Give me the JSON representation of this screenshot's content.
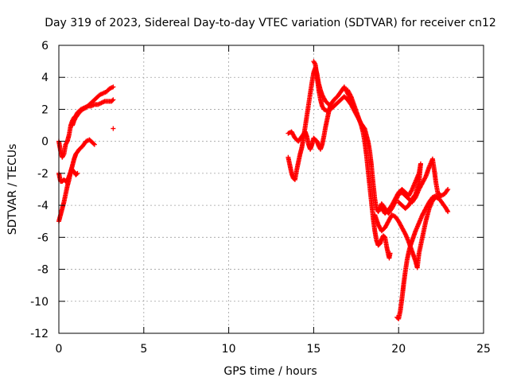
{
  "chart_data": {
    "type": "scatter",
    "title": "Day 319 of 2023, Sidereal Day-to-day VTEC variation (SDTVAR) for receiver cn12",
    "xlabel": "GPS time / hours",
    "ylabel": "SDTVAR / TECUs",
    "xlim": [
      0,
      25
    ],
    "ylim": [
      -12,
      6
    ],
    "xticks": [
      0,
      5,
      10,
      15,
      20,
      25
    ],
    "yticks": [
      -12,
      -10,
      -8,
      -6,
      -4,
      -2,
      0,
      2,
      4,
      6
    ],
    "grid": true,
    "marker": "+",
    "color": "#ff0000",
    "series": [
      {
        "values": [
          [
            0.0,
            -5.0
          ],
          [
            0.1,
            -4.6
          ],
          [
            0.2,
            -4.2
          ],
          [
            0.3,
            -3.8
          ],
          [
            0.4,
            -3.3
          ],
          [
            0.5,
            -2.8
          ],
          [
            0.6,
            -2.4
          ],
          [
            0.7,
            -1.9
          ],
          [
            0.8,
            -1.5
          ],
          [
            0.9,
            -1.1
          ],
          [
            1.0,
            -0.8
          ],
          [
            1.2,
            -0.5
          ],
          [
            1.4,
            -0.3
          ],
          [
            1.6,
            0.0
          ],
          [
            1.8,
            0.1
          ],
          [
            2.0,
            -0.1
          ],
          [
            2.1,
            -0.2
          ]
        ]
      },
      {
        "values": [
          [
            0.0,
            -2.0
          ],
          [
            0.1,
            -2.5
          ],
          [
            0.2,
            -2.5
          ],
          [
            0.3,
            -2.4
          ],
          [
            0.4,
            -2.5
          ],
          [
            0.5,
            -2.4
          ],
          [
            0.6,
            -2.2
          ],
          [
            0.7,
            -1.9
          ],
          [
            0.75,
            -1.7
          ],
          [
            0.8,
            -1.8
          ],
          [
            0.9,
            -1.9
          ],
          [
            1.0,
            -2.1
          ],
          [
            1.1,
            -2.0
          ]
        ]
      },
      {
        "values": [
          [
            0.0,
            0.0
          ],
          [
            0.1,
            -0.6
          ],
          [
            0.2,
            -1.0
          ],
          [
            0.3,
            -0.8
          ],
          [
            0.4,
            -0.2
          ],
          [
            0.5,
            0.0
          ],
          [
            0.6,
            0.4
          ],
          [
            0.7,
            1.0
          ],
          [
            0.8,
            1.3
          ],
          [
            0.9,
            1.5
          ],
          [
            1.0,
            1.6
          ],
          [
            1.1,
            1.8
          ],
          [
            1.2,
            1.9
          ],
          [
            1.3,
            2.0
          ],
          [
            1.5,
            2.1
          ],
          [
            1.7,
            2.2
          ],
          [
            1.9,
            2.2
          ],
          [
            2.1,
            2.3
          ],
          [
            2.3,
            2.3
          ],
          [
            2.5,
            2.4
          ],
          [
            2.7,
            2.5
          ],
          [
            2.9,
            2.5
          ],
          [
            3.1,
            2.5
          ],
          [
            3.2,
            2.6
          ]
        ]
      },
      {
        "values": [
          [
            0.8,
            1.0
          ],
          [
            0.9,
            1.3
          ],
          [
            1.0,
            1.5
          ],
          [
            1.2,
            1.8
          ],
          [
            1.4,
            2.0
          ],
          [
            1.6,
            2.1
          ],
          [
            1.8,
            2.3
          ],
          [
            2.0,
            2.5
          ],
          [
            2.2,
            2.7
          ],
          [
            2.4,
            2.9
          ],
          [
            2.6,
            3.0
          ],
          [
            2.8,
            3.1
          ],
          [
            3.0,
            3.3
          ],
          [
            3.2,
            3.4
          ]
        ]
      },
      {
        "values": [
          [
            3.2,
            0.8
          ]
        ]
      },
      {
        "values": [
          [
            13.5,
            -1.0
          ],
          [
            13.6,
            -1.5
          ],
          [
            13.7,
            -2.0
          ],
          [
            13.8,
            -2.3
          ],
          [
            13.9,
            -2.4
          ],
          [
            14.0,
            -1.8
          ],
          [
            14.1,
            -1.3
          ],
          [
            14.2,
            -0.8
          ],
          [
            14.3,
            -0.4
          ],
          [
            14.4,
            0.2
          ],
          [
            14.5,
            0.9
          ],
          [
            14.6,
            1.6
          ],
          [
            14.7,
            2.3
          ],
          [
            14.8,
            3.0
          ],
          [
            14.9,
            3.7
          ],
          [
            15.0,
            4.3
          ],
          [
            15.1,
            4.6
          ],
          [
            15.2,
            4.2
          ],
          [
            15.3,
            3.6
          ],
          [
            15.4,
            3.2
          ],
          [
            15.5,
            2.9
          ],
          [
            15.6,
            2.7
          ],
          [
            15.7,
            2.5
          ],
          [
            15.8,
            2.4
          ],
          [
            15.9,
            2.3
          ],
          [
            16.0,
            2.2
          ]
        ]
      },
      {
        "values": [
          [
            13.5,
            0.5
          ],
          [
            13.7,
            0.6
          ],
          [
            13.9,
            0.2
          ],
          [
            14.1,
            0.0
          ],
          [
            14.3,
            0.3
          ],
          [
            14.5,
            0.6
          ],
          [
            14.6,
            0.3
          ],
          [
            14.7,
            -0.2
          ],
          [
            14.8,
            -0.5
          ],
          [
            14.9,
            -0.2
          ],
          [
            15.0,
            0.2
          ],
          [
            15.2,
            0.0
          ],
          [
            15.3,
            -0.3
          ],
          [
            15.4,
            -0.5
          ],
          [
            15.5,
            -0.2
          ],
          [
            15.6,
            0.3
          ],
          [
            15.7,
            0.9
          ],
          [
            15.8,
            1.4
          ],
          [
            15.9,
            1.9
          ],
          [
            16.0,
            2.3
          ],
          [
            16.2,
            2.6
          ],
          [
            16.4,
            2.8
          ],
          [
            16.6,
            3.1
          ],
          [
            16.8,
            3.4
          ],
          [
            17.0,
            3.0
          ],
          [
            17.2,
            2.6
          ]
        ]
      },
      {
        "values": [
          [
            15.0,
            5.0
          ],
          [
            15.1,
            4.8
          ],
          [
            15.2,
            4.0
          ],
          [
            15.3,
            3.2
          ],
          [
            15.4,
            2.6
          ],
          [
            15.5,
            2.2
          ],
          [
            15.6,
            2.0
          ],
          [
            15.8,
            1.9
          ],
          [
            16.0,
            2.0
          ],
          [
            16.2,
            2.2
          ],
          [
            16.4,
            2.4
          ],
          [
            16.6,
            2.6
          ],
          [
            16.8,
            2.8
          ],
          [
            17.0,
            2.6
          ],
          [
            17.2,
            2.3
          ],
          [
            17.4,
            1.9
          ],
          [
            17.6,
            1.5
          ],
          [
            17.8,
            1.1
          ],
          [
            18.0,
            0.8
          ],
          [
            18.1,
            0.4
          ],
          [
            18.2,
            0.0
          ],
          [
            18.3,
            -0.6
          ],
          [
            18.4,
            -1.5
          ],
          [
            18.5,
            -2.6
          ],
          [
            18.6,
            -3.6
          ],
          [
            18.7,
            -4.2
          ],
          [
            18.8,
            -4.4
          ],
          [
            18.9,
            -4.2
          ],
          [
            19.0,
            -3.9
          ],
          [
            19.2,
            -4.2
          ],
          [
            19.4,
            -4.5
          ],
          [
            19.6,
            -4.2
          ],
          [
            19.8,
            -3.8
          ],
          [
            20.0,
            -3.3
          ],
          [
            20.2,
            -3.2
          ],
          [
            20.4,
            -3.4
          ],
          [
            20.6,
            -3.6
          ],
          [
            20.8,
            -3.8
          ],
          [
            21.0,
            -3.5
          ],
          [
            21.2,
            -3.0
          ],
          [
            21.4,
            -2.6
          ],
          [
            21.6,
            -2.2
          ],
          [
            21.8,
            -1.6
          ],
          [
            22.0,
            -1.1
          ],
          [
            22.1,
            -1.8
          ],
          [
            22.2,
            -2.6
          ],
          [
            22.3,
            -3.2
          ],
          [
            22.5,
            -3.4
          ],
          [
            22.7,
            -3.3
          ],
          [
            22.9,
            -3.0
          ]
        ]
      },
      {
        "values": [
          [
            17.0,
            3.2
          ],
          [
            17.2,
            2.8
          ],
          [
            17.4,
            2.2
          ],
          [
            17.6,
            1.6
          ],
          [
            17.8,
            1.0
          ],
          [
            17.9,
            0.6
          ],
          [
            18.0,
            0.0
          ],
          [
            18.1,
            -0.8
          ],
          [
            18.2,
            -1.8
          ],
          [
            18.3,
            -2.8
          ],
          [
            18.4,
            -3.8
          ],
          [
            18.5,
            -4.8
          ],
          [
            18.6,
            -5.6
          ],
          [
            18.7,
            -6.2
          ],
          [
            18.8,
            -6.5
          ],
          [
            18.9,
            -6.4
          ],
          [
            19.0,
            -6.1
          ],
          [
            19.1,
            -5.9
          ],
          [
            19.2,
            -6.0
          ],
          [
            19.3,
            -6.6
          ],
          [
            19.4,
            -7.1
          ],
          [
            19.45,
            -7.3
          ],
          [
            19.5,
            -7.0
          ]
        ]
      },
      {
        "values": [
          [
            18.6,
            -4.6
          ],
          [
            18.8,
            -5.2
          ],
          [
            19.0,
            -5.6
          ],
          [
            19.2,
            -5.4
          ],
          [
            19.4,
            -5.0
          ],
          [
            19.6,
            -4.6
          ],
          [
            19.8,
            -4.7
          ],
          [
            20.0,
            -5.0
          ],
          [
            20.2,
            -5.4
          ],
          [
            20.4,
            -5.8
          ],
          [
            20.6,
            -6.3
          ],
          [
            20.8,
            -6.9
          ],
          [
            21.0,
            -7.5
          ],
          [
            21.1,
            -7.9
          ],
          [
            21.2,
            -7.0
          ],
          [
            21.4,
            -6.0
          ],
          [
            21.6,
            -5.0
          ],
          [
            21.8,
            -4.2
          ],
          [
            22.0,
            -3.7
          ],
          [
            22.2,
            -3.5
          ],
          [
            22.4,
            -3.6
          ],
          [
            22.6,
            -3.9
          ],
          [
            22.8,
            -4.2
          ],
          [
            22.9,
            -4.4
          ]
        ]
      },
      {
        "values": [
          [
            19.9,
            -11.0
          ],
          [
            20.0,
            -11.1
          ],
          [
            20.1,
            -10.6
          ],
          [
            20.2,
            -9.8
          ],
          [
            20.3,
            -8.9
          ],
          [
            20.4,
            -8.1
          ],
          [
            20.5,
            -7.4
          ],
          [
            20.6,
            -6.9
          ],
          [
            20.7,
            -6.5
          ],
          [
            20.8,
            -6.2
          ],
          [
            21.0,
            -5.6
          ],
          [
            21.2,
            -5.1
          ],
          [
            21.4,
            -4.6
          ],
          [
            21.6,
            -4.2
          ],
          [
            21.8,
            -3.8
          ],
          [
            22.0,
            -3.5
          ],
          [
            22.2,
            -3.4
          ],
          [
            22.4,
            -3.5
          ]
        ]
      },
      {
        "values": [
          [
            19.0,
            -4.2
          ],
          [
            19.2,
            -4.5
          ],
          [
            19.4,
            -4.3
          ],
          [
            19.6,
            -4.0
          ],
          [
            19.8,
            -3.6
          ],
          [
            20.0,
            -3.2
          ],
          [
            20.2,
            -3.0
          ],
          [
            20.4,
            -3.2
          ],
          [
            20.6,
            -3.4
          ],
          [
            20.8,
            -3.0
          ],
          [
            21.0,
            -2.5
          ],
          [
            21.2,
            -2.0
          ],
          [
            21.3,
            -1.4
          ],
          [
            21.2,
            -2.6
          ],
          [
            21.0,
            -3.3
          ],
          [
            20.8,
            -3.6
          ],
          [
            20.6,
            -4.0
          ],
          [
            20.4,
            -4.2
          ],
          [
            20.2,
            -4.0
          ],
          [
            20.0,
            -3.8
          ]
        ]
      }
    ]
  }
}
